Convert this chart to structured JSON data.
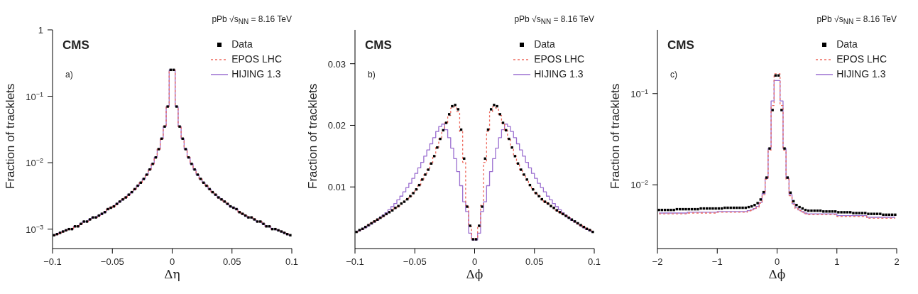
{
  "chart_data": [
    {
      "type": "step",
      "title": "pPb √s$_{NN}$ = 8.16 TeV",
      "annotations": [
        "CMS",
        "a)"
      ],
      "xlabel": "Δη",
      "ylabel": "Fraction of tracklets",
      "log": true,
      "legend": "top right",
      "x": [
        -0.09875,
        -0.09625,
        -0.09375,
        -0.09125,
        -0.08875,
        -0.08625,
        -0.08375,
        -0.08125,
        -0.07875,
        -0.07625,
        -0.07375,
        -0.07125,
        -0.06875,
        -0.06625,
        -0.06375,
        -0.06125,
        -0.05875,
        -0.05625,
        -0.05375,
        -0.05125,
        -0.04875,
        -0.04625,
        -0.04375,
        -0.04125,
        -0.03875,
        -0.03625,
        -0.03375,
        -0.03125,
        -0.02875,
        -0.02625,
        -0.02375,
        -0.02125,
        -0.01875,
        -0.01625,
        -0.01375,
        -0.01125,
        -0.00875,
        -0.00625,
        -0.00375,
        -0.00125,
        0.00125,
        0.00375,
        0.00625,
        0.00875,
        0.01125,
        0.01375,
        0.01625,
        0.01875,
        0.02125,
        0.02375,
        0.02625,
        0.02875,
        0.03125,
        0.03375,
        0.03625,
        0.03875,
        0.04125,
        0.04375,
        0.04625,
        0.04875,
        0.05125,
        0.05375,
        0.05625,
        0.05875,
        0.06125,
        0.06375,
        0.06625,
        0.06875,
        0.07125,
        0.07375,
        0.07625,
        0.07875,
        0.08125,
        0.08375,
        0.08625,
        0.08875,
        0.09125,
        0.09375,
        0.09625,
        0.09875
      ],
      "xlim": [
        -0.1,
        0.1
      ],
      "xticks": [
        -0.1,
        -0.05,
        0,
        0.05,
        0.1
      ],
      "ylim": [
        0.00051,
        1
      ],
      "yticks": [
        {
          "value": 0.001,
          "label": "10$^{−3}$"
        },
        {
          "value": 0.01,
          "label": "10$^{−2}$"
        },
        {
          "value": 0.1,
          "label": "10$^{−1}$"
        },
        1
      ],
      "series": [
        {
          "name": "EPOS LHC",
          "type": "step",
          "line_style": "dashed",
          "color": "#ee6a5e",
          "values": [
            0.00081,
            0.00084,
            0.00088,
            0.00092,
            0.00096,
            0.001,
            0.001,
            0.0011,
            0.0011,
            0.0012,
            0.0013,
            0.0013,
            0.0014,
            0.0015,
            0.0015,
            0.0016,
            0.0017,
            0.0018,
            0.002,
            0.0021,
            0.0022,
            0.0024,
            0.0026,
            0.0028,
            0.003,
            0.0033,
            0.0036,
            0.004,
            0.0045,
            0.005,
            0.0057,
            0.0066,
            0.0079,
            0.0096,
            0.012,
            0.016,
            0.023,
            0.035,
            0.07,
            0.25,
            0.25,
            0.07,
            0.035,
            0.023,
            0.016,
            0.012,
            0.0096,
            0.0079,
            0.0066,
            0.0057,
            0.005,
            0.0045,
            0.004,
            0.0036,
            0.0033,
            0.003,
            0.0028,
            0.0026,
            0.0024,
            0.0022,
            0.0021,
            0.002,
            0.0018,
            0.0017,
            0.0016,
            0.0015,
            0.0015,
            0.0014,
            0.0013,
            0.0013,
            0.0012,
            0.0011,
            0.0011,
            0.001,
            0.001,
            0.00096,
            0.00092,
            0.00088,
            0.00084,
            0.00081
          ]
        },
        {
          "name": "HIJING 1.3",
          "type": "step",
          "line_style": "solid",
          "color": "#9b6fd0",
          "values": [
            0.00081,
            0.00084,
            0.00088,
            0.00092,
            0.00096,
            0.001,
            0.001,
            0.0011,
            0.0011,
            0.0012,
            0.0013,
            0.0013,
            0.0014,
            0.0015,
            0.0015,
            0.0016,
            0.0017,
            0.0018,
            0.002,
            0.0021,
            0.0022,
            0.0024,
            0.0026,
            0.0028,
            0.003,
            0.0033,
            0.0036,
            0.004,
            0.0045,
            0.005,
            0.0057,
            0.0066,
            0.0079,
            0.0096,
            0.012,
            0.016,
            0.023,
            0.035,
            0.07,
            0.25,
            0.25,
            0.07,
            0.035,
            0.023,
            0.016,
            0.012,
            0.0096,
            0.0079,
            0.0066,
            0.0057,
            0.005,
            0.0045,
            0.004,
            0.0036,
            0.0033,
            0.003,
            0.0028,
            0.0026,
            0.0024,
            0.0022,
            0.0021,
            0.002,
            0.0018,
            0.0017,
            0.0016,
            0.0015,
            0.0015,
            0.0014,
            0.0013,
            0.0013,
            0.0012,
            0.0011,
            0.0011,
            0.001,
            0.001,
            0.00096,
            0.00092,
            0.00088,
            0.00084,
            0.00081
          ]
        },
        {
          "name": "Data",
          "type": "scatter",
          "marker": "square",
          "color": "#000000",
          "values": [
            0.00081,
            0.00084,
            0.00088,
            0.00092,
            0.00096,
            0.001,
            0.001,
            0.0011,
            0.0011,
            0.0012,
            0.0013,
            0.0013,
            0.0014,
            0.0015,
            0.0015,
            0.0016,
            0.0017,
            0.0018,
            0.002,
            0.0021,
            0.0022,
            0.0024,
            0.0026,
            0.0028,
            0.003,
            0.0033,
            0.0036,
            0.004,
            0.0045,
            0.005,
            0.0057,
            0.0066,
            0.0079,
            0.0096,
            0.012,
            0.016,
            0.023,
            0.035,
            0.07,
            0.25,
            0.25,
            0.07,
            0.035,
            0.023,
            0.016,
            0.012,
            0.0096,
            0.0079,
            0.0066,
            0.0057,
            0.005,
            0.0045,
            0.004,
            0.0036,
            0.0033,
            0.003,
            0.0028,
            0.0026,
            0.0024,
            0.0022,
            0.0021,
            0.002,
            0.0018,
            0.0017,
            0.0016,
            0.0015,
            0.0015,
            0.0014,
            0.0013,
            0.0013,
            0.0012,
            0.0011,
            0.0011,
            0.001,
            0.001,
            0.00096,
            0.00092,
            0.00088,
            0.00084,
            0.00081
          ]
        }
      ]
    },
    {
      "type": "step",
      "title": "pPb √s$_{NN}$ = 8.16 TeV",
      "annotations": [
        "CMS",
        "b)"
      ],
      "xlabel": "Δϕ",
      "ylabel": "Fraction of tracklets",
      "legend": "top right",
      "x": [
        -0.09875,
        -0.09625,
        -0.09375,
        -0.09125,
        -0.08875,
        -0.08625,
        -0.08375,
        -0.08125,
        -0.07875,
        -0.07625,
        -0.07375,
        -0.07125,
        -0.06875,
        -0.06625,
        -0.06375,
        -0.06125,
        -0.05875,
        -0.05625,
        -0.05375,
        -0.05125,
        -0.04875,
        -0.04625,
        -0.04375,
        -0.04125,
        -0.03875,
        -0.03625,
        -0.03375,
        -0.03125,
        -0.02875,
        -0.02625,
        -0.02375,
        -0.02125,
        -0.01875,
        -0.01625,
        -0.01375,
        -0.01125,
        -0.00875,
        -0.00625,
        -0.00375,
        -0.00125,
        0.00125,
        0.00375,
        0.00625,
        0.00875,
        0.01125,
        0.01375,
        0.01625,
        0.01875,
        0.02125,
        0.02375,
        0.02625,
        0.02875,
        0.03125,
        0.03375,
        0.03625,
        0.03875,
        0.04125,
        0.04375,
        0.04625,
        0.04875,
        0.05125,
        0.05375,
        0.05625,
        0.05875,
        0.06125,
        0.06375,
        0.06625,
        0.06875,
        0.07125,
        0.07375,
        0.07625,
        0.07875,
        0.08125,
        0.08375,
        0.08625,
        0.08875,
        0.09125,
        0.09375,
        0.09625,
        0.09875
      ],
      "xlim": [
        -0.1,
        0.1
      ],
      "xticks": [
        -0.1,
        -0.05,
        0,
        0.05,
        0.1
      ],
      "ylim": [
        0,
        0.0355
      ],
      "yticks": [
        0.01,
        0.02,
        0.03
      ],
      "series": [
        {
          "name": "EPOS LHC",
          "type": "step",
          "line_style": "dashed",
          "color": "#ee6a5e",
          "values": [
            0.0027,
            0.003,
            0.0032,
            0.0035,
            0.0038,
            0.0041,
            0.0044,
            0.0047,
            0.005,
            0.0053,
            0.0056,
            0.0059,
            0.0062,
            0.0066,
            0.0069,
            0.0073,
            0.0076,
            0.008,
            0.0085,
            0.009,
            0.0096,
            0.0103,
            0.0112,
            0.012,
            0.0128,
            0.0138,
            0.015,
            0.0164,
            0.0178,
            0.0192,
            0.0204,
            0.0216,
            0.0228,
            0.023,
            0.0222,
            0.019,
            0.014,
            0.007,
            0.0036,
            0.0016,
            0.0016,
            0.0036,
            0.007,
            0.014,
            0.019,
            0.0222,
            0.023,
            0.0228,
            0.0216,
            0.0204,
            0.0192,
            0.0178,
            0.0164,
            0.015,
            0.0138,
            0.0128,
            0.012,
            0.0112,
            0.0103,
            0.0096,
            0.009,
            0.0085,
            0.008,
            0.0076,
            0.0073,
            0.0069,
            0.0066,
            0.0062,
            0.0059,
            0.0056,
            0.0053,
            0.005,
            0.0047,
            0.0044,
            0.0041,
            0.0038,
            0.0035,
            0.0032,
            0.003,
            0.0027
          ]
        },
        {
          "name": "HIJING 1.3",
          "type": "step",
          "line_style": "solid",
          "color": "#9b6fd0",
          "values": [
            0.0027,
            0.0029,
            0.0031,
            0.0034,
            0.0037,
            0.004,
            0.0043,
            0.0046,
            0.005,
            0.0054,
            0.0058,
            0.0063,
            0.0068,
            0.0073,
            0.0079,
            0.0085,
            0.0092,
            0.0099,
            0.0106,
            0.0114,
            0.0122,
            0.0131,
            0.014,
            0.015,
            0.016,
            0.017,
            0.018,
            0.019,
            0.0198,
            0.0202,
            0.0193,
            0.018,
            0.0163,
            0.0146,
            0.0125,
            0.0102,
            0.0076,
            0.006,
            0.0025,
            0.0014,
            0.0014,
            0.0025,
            0.006,
            0.0076,
            0.0102,
            0.0125,
            0.0146,
            0.0163,
            0.018,
            0.0193,
            0.0202,
            0.0198,
            0.019,
            0.018,
            0.017,
            0.016,
            0.015,
            0.014,
            0.0131,
            0.0122,
            0.0114,
            0.0106,
            0.0099,
            0.0092,
            0.0085,
            0.0079,
            0.0073,
            0.0068,
            0.0063,
            0.0058,
            0.0054,
            0.005,
            0.0046,
            0.0043,
            0.004,
            0.0037,
            0.0034,
            0.0031,
            0.0029,
            0.0027
          ]
        },
        {
          "name": "Data",
          "type": "scatter",
          "marker": "square",
          "color": "#000000",
          "values": [
            0.0027,
            0.003,
            0.0032,
            0.0035,
            0.0038,
            0.0041,
            0.0044,
            0.0047,
            0.005,
            0.0053,
            0.0056,
            0.0059,
            0.0062,
            0.0066,
            0.0069,
            0.0073,
            0.0076,
            0.008,
            0.0085,
            0.009,
            0.0096,
            0.0103,
            0.0112,
            0.012,
            0.0128,
            0.0138,
            0.015,
            0.0164,
            0.0178,
            0.0192,
            0.0204,
            0.0218,
            0.0231,
            0.0233,
            0.0226,
            0.0193,
            0.0146,
            0.0068,
            0.0037,
            0.0015,
            0.0015,
            0.0037,
            0.0068,
            0.0146,
            0.0193,
            0.0226,
            0.0233,
            0.0231,
            0.0218,
            0.0204,
            0.0192,
            0.0178,
            0.0164,
            0.015,
            0.0138,
            0.0128,
            0.012,
            0.0112,
            0.0103,
            0.0096,
            0.009,
            0.0085,
            0.008,
            0.0076,
            0.0073,
            0.0069,
            0.0066,
            0.0062,
            0.0059,
            0.0056,
            0.0053,
            0.005,
            0.0047,
            0.0044,
            0.0041,
            0.0038,
            0.0035,
            0.0032,
            0.003,
            0.0027
          ]
        }
      ]
    },
    {
      "type": "step",
      "title": "pPb √s$_{NN}$ = 8.16 TeV",
      "annotations": [
        "CMS",
        "c)"
      ],
      "xlabel": "Δϕ",
      "ylabel": "Fraction of tracklets",
      "log": true,
      "legend": "top right",
      "x": [
        -1.975,
        -1.925,
        -1.875,
        -1.825,
        -1.775,
        -1.725,
        -1.675,
        -1.625,
        -1.575,
        -1.525,
        -1.475,
        -1.425,
        -1.375,
        -1.325,
        -1.275,
        -1.225,
        -1.175,
        -1.125,
        -1.075,
        -1.025,
        -0.975,
        -0.925,
        -0.875,
        -0.825,
        -0.775,
        -0.725,
        -0.675,
        -0.625,
        -0.575,
        -0.525,
        -0.475,
        -0.425,
        -0.375,
        -0.325,
        -0.275,
        -0.225,
        -0.175,
        -0.125,
        -0.075,
        -0.025,
        0.025,
        0.075,
        0.125,
        0.175,
        0.225,
        0.275,
        0.325,
        0.375,
        0.425,
        0.475,
        0.525,
        0.575,
        0.625,
        0.675,
        0.725,
        0.775,
        0.825,
        0.875,
        0.925,
        0.975,
        1.025,
        1.075,
        1.125,
        1.175,
        1.225,
        1.275,
        1.325,
        1.375,
        1.425,
        1.475,
        1.525,
        1.575,
        1.625,
        1.675,
        1.725,
        1.775,
        1.825,
        1.875,
        1.925,
        1.975
      ],
      "xlim": [
        -2,
        2
      ],
      "xticks": [
        -2,
        -1,
        0,
        1,
        2
      ],
      "ylim": [
        0.002,
        0.5
      ],
      "yticks": [
        {
          "value": 0.01,
          "label": "10$^{−2}$"
        },
        {
          "value": 0.1,
          "label": "10$^{−1}$"
        }
      ],
      "series": [
        {
          "name": "EPOS LHC",
          "type": "step",
          "line_style": "dashed",
          "color": "#ee6a5e",
          "values": [
            0.0048,
            0.0048,
            0.0048,
            0.0048,
            0.0048,
            0.0048,
            0.0048,
            0.0048,
            0.0048,
            0.0048,
            0.0049,
            0.0049,
            0.0049,
            0.0049,
            0.0049,
            0.0049,
            0.0049,
            0.0049,
            0.0049,
            0.0049,
            0.005,
            0.005,
            0.005,
            0.005,
            0.005,
            0.005,
            0.005,
            0.005,
            0.005,
            0.005,
            0.0051,
            0.0052,
            0.0054,
            0.0057,
            0.0063,
            0.0078,
            0.0115,
            0.024,
            0.074,
            0.165,
            0.165,
            0.074,
            0.024,
            0.0115,
            0.0076,
            0.0061,
            0.0055,
            0.0052,
            0.005,
            0.0048,
            0.0047,
            0.0047,
            0.0047,
            0.0047,
            0.0047,
            0.0047,
            0.0047,
            0.0047,
            0.0047,
            0.0047,
            0.0045,
            0.0045,
            0.0045,
            0.0045,
            0.0045,
            0.0045,
            0.0045,
            0.0045,
            0.0045,
            0.0045,
            0.0043,
            0.0043,
            0.0043,
            0.0043,
            0.0043,
            0.0043,
            0.0043,
            0.0043,
            0.0043,
            0.0043
          ]
        },
        {
          "name": "HIJING 1.3",
          "type": "step",
          "line_style": "solid",
          "color": "#9b6fd0",
          "values": [
            0.0049,
            0.0049,
            0.0049,
            0.0049,
            0.0049,
            0.0049,
            0.0049,
            0.0049,
            0.0049,
            0.0049,
            0.005,
            0.005,
            0.005,
            0.005,
            0.005,
            0.005,
            0.005,
            0.005,
            0.005,
            0.005,
            0.0051,
            0.0051,
            0.0051,
            0.0051,
            0.0051,
            0.0051,
            0.0051,
            0.0051,
            0.0051,
            0.0051,
            0.0052,
            0.0053,
            0.0055,
            0.0058,
            0.0064,
            0.008,
            0.0118,
            0.025,
            0.083,
            0.139,
            0.139,
            0.083,
            0.025,
            0.0118,
            0.0078,
            0.0062,
            0.0056,
            0.0053,
            0.0051,
            0.0049,
            0.0048,
            0.0048,
            0.0048,
            0.0048,
            0.0048,
            0.0048,
            0.0048,
            0.0048,
            0.0048,
            0.0048,
            0.0046,
            0.0046,
            0.0046,
            0.0046,
            0.0046,
            0.0046,
            0.0046,
            0.0046,
            0.0046,
            0.0046,
            0.0044,
            0.0044,
            0.0044,
            0.0044,
            0.0044,
            0.0044,
            0.0044,
            0.0044,
            0.0044,
            0.0044
          ]
        },
        {
          "name": "Data",
          "type": "scatter",
          "marker": "square",
          "color": "#000000",
          "values": [
            0.0053,
            0.0053,
            0.0053,
            0.0053,
            0.0053,
            0.0053,
            0.0054,
            0.0054,
            0.0054,
            0.0054,
            0.0054,
            0.0054,
            0.0054,
            0.0054,
            0.0055,
            0.0055,
            0.0055,
            0.0055,
            0.0055,
            0.0055,
            0.0055,
            0.0055,
            0.0056,
            0.0056,
            0.0056,
            0.0056,
            0.0056,
            0.0056,
            0.0056,
            0.0056,
            0.0057,
            0.0058,
            0.006,
            0.0063,
            0.0069,
            0.0083,
            0.012,
            0.025,
            0.066,
            0.158,
            0.158,
            0.066,
            0.025,
            0.012,
            0.0082,
            0.0066,
            0.006,
            0.0057,
            0.0055,
            0.0053,
            0.0052,
            0.0052,
            0.0052,
            0.0052,
            0.0052,
            0.0051,
            0.0051,
            0.0051,
            0.0051,
            0.0051,
            0.005,
            0.005,
            0.005,
            0.005,
            0.005,
            0.0049,
            0.0049,
            0.0049,
            0.0049,
            0.0049,
            0.0048,
            0.0048,
            0.0048,
            0.0048,
            0.0048,
            0.0047,
            0.0047,
            0.0047,
            0.0047,
            0.0047
          ]
        }
      ]
    }
  ]
}
